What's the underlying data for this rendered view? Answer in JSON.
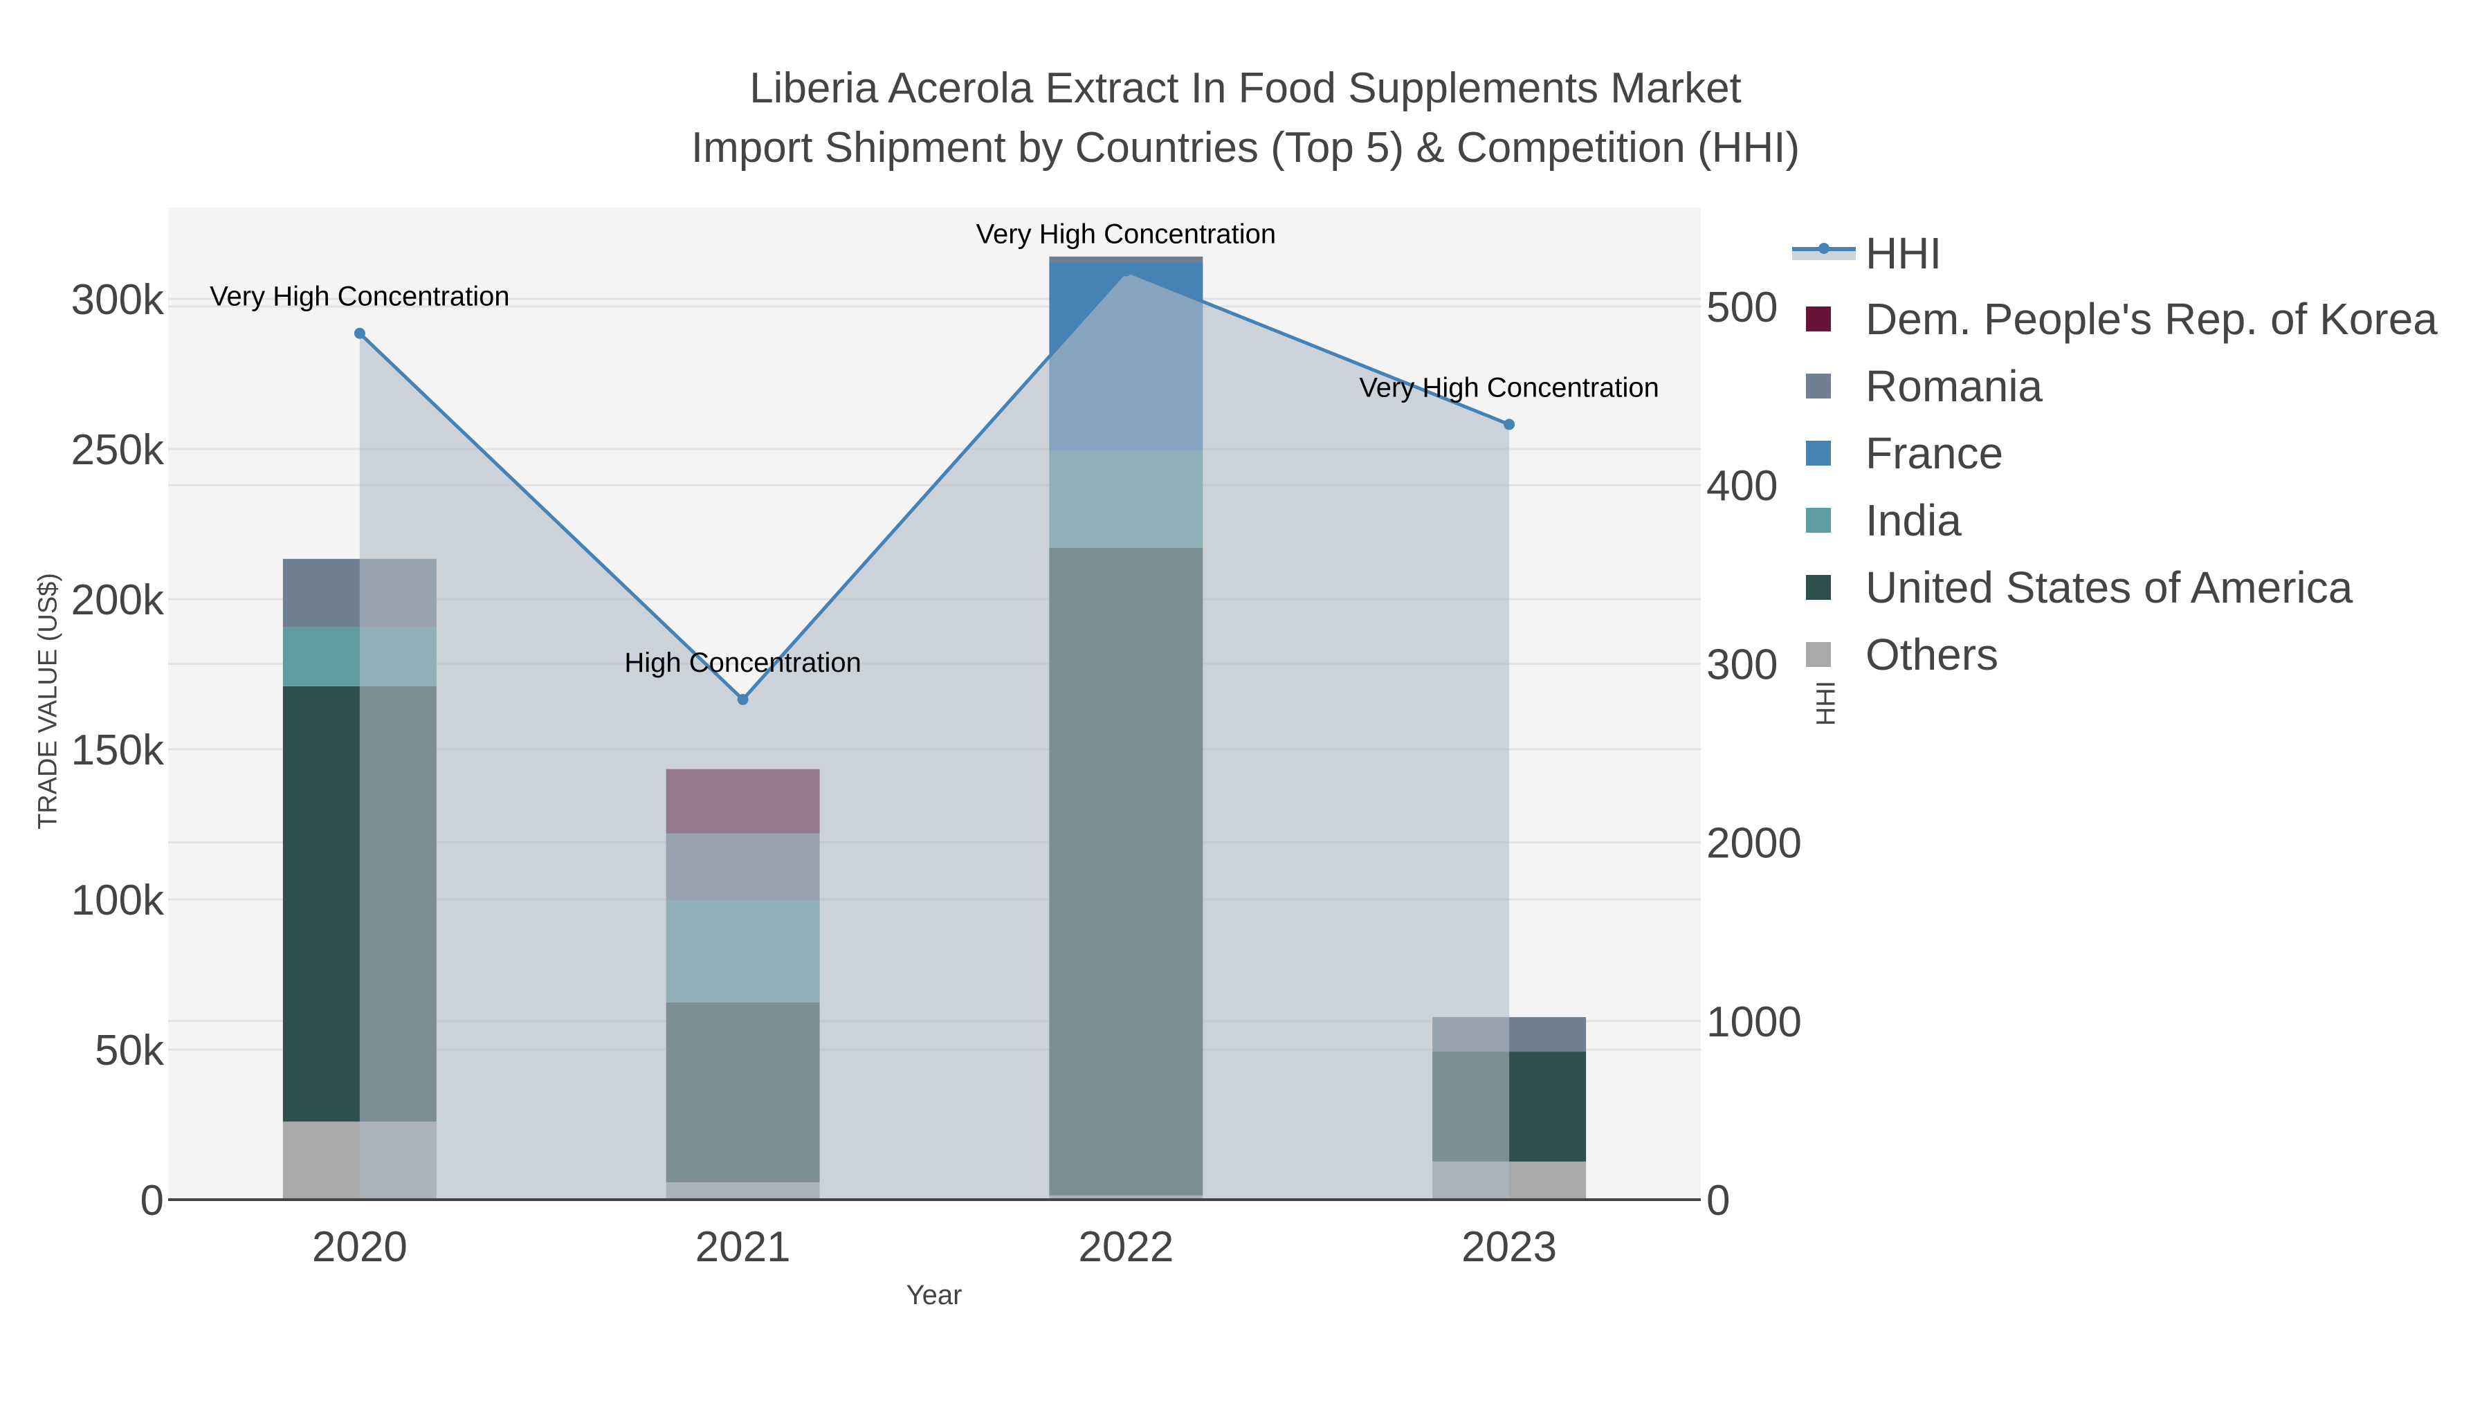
{
  "title": {
    "line1": "Liberia Acerola Extract In Food Supplements Market",
    "line2": "Import Shipment by Countries (Top 5) & Competition (HHI)"
  },
  "axes": {
    "x_title": "Year",
    "y_left_title": "TRADE VALUE (US$)",
    "y_right_title": "HHI",
    "x_ticks": [
      "2020",
      "2021",
      "2022",
      "2023"
    ],
    "y_left_ticks": [
      "0",
      "50k",
      "100k",
      "150k",
      "200k",
      "250k",
      "300k"
    ],
    "y_right_ticks": [
      "0",
      "1000",
      "2000",
      "300",
      "400",
      "500"
    ]
  },
  "legend": {
    "items": [
      {
        "label": "HHI",
        "type": "line",
        "color": "#4682b4"
      },
      {
        "label": "Dem. People's Rep. of Korea",
        "type": "bar",
        "color": "#661538"
      },
      {
        "label": "Romania",
        "type": "bar",
        "color": "#708090"
      },
      {
        "label": "France",
        "type": "bar",
        "color": "#4682b4"
      },
      {
        "label": "India",
        "type": "bar",
        "color": "#5f9ea0"
      },
      {
        "label": "United States of America",
        "type": "bar",
        "color": "#2f4f4f"
      },
      {
        "label": "Others",
        "type": "bar",
        "color": "#a9a9a9"
      }
    ]
  },
  "annotations": [
    {
      "year": "2020",
      "text": "Very High Concentration"
    },
    {
      "year": "2021",
      "text": "High Concentration"
    },
    {
      "year": "2022",
      "text": "Very High Concentration"
    },
    {
      "year": "2023",
      "text": "Very High Concentration"
    }
  ],
  "colors": {
    "plot_bg": "#f4f4f4",
    "hhi_line": "#4682b4",
    "hhi_fill": "rgba(176,186,200,0.6)",
    "grid": "#e2e2e2",
    "axis_text": "#444444"
  },
  "chart_data": {
    "type": "bar",
    "title": "Liberia Acerola Extract In Food Supplements Market Import Shipment by Countries (Top 5) & Competition (HHI)",
    "xlabel": "Year",
    "ylabel": "TRADE VALUE (US$)",
    "y2label": "HHI",
    "categories": [
      "2020",
      "2021",
      "2022",
      "2023"
    ],
    "ylim": [
      0,
      330000
    ],
    "y2lim": [
      0,
      5500
    ],
    "stacked": true,
    "legend_position": "right",
    "grid": true,
    "series": [
      {
        "name": "Others",
        "color": "#a9a9a9",
        "values": [
          26000,
          5800,
          1400,
          12700
        ]
      },
      {
        "name": "United States of America",
        "color": "#2f4f4f",
        "values": [
          145000,
          59900,
          215700,
          36600
        ]
      },
      {
        "name": "India",
        "color": "#5f9ea0",
        "values": [
          19600,
          33900,
          32300,
          0
        ]
      },
      {
        "name": "France",
        "color": "#4682b4",
        "values": [
          0,
          0,
          62700,
          0
        ]
      },
      {
        "name": "Romania",
        "color": "#708090",
        "values": [
          22800,
          22400,
          2000,
          11500
        ]
      },
      {
        "name": "Dem. People's Rep. of Korea",
        "color": "#661538",
        "values": [
          0,
          21400,
          0,
          0
        ]
      }
    ],
    "hhi": {
      "name": "HHI",
      "type": "line",
      "axis": "right",
      "color": "#4682b4",
      "values": [
        4850,
        2800,
        5200,
        4340
      ],
      "labels": [
        "Very High Concentration",
        "High Concentration",
        "Very High Concentration",
        "Very High Concentration"
      ]
    }
  }
}
